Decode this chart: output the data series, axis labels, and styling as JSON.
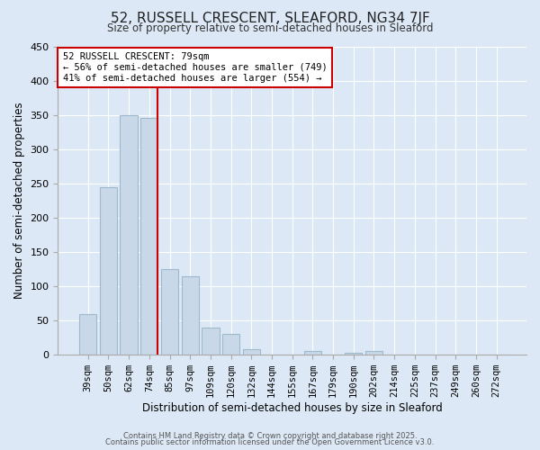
{
  "title": "52, RUSSELL CRESCENT, SLEAFORD, NG34 7JF",
  "subtitle": "Size of property relative to semi-detached houses in Sleaford",
  "xlabel": "Distribution of semi-detached houses by size in Sleaford",
  "ylabel": "Number of semi-detached properties",
  "categories": [
    "39sqm",
    "50sqm",
    "62sqm",
    "74sqm",
    "85sqm",
    "97sqm",
    "109sqm",
    "120sqm",
    "132sqm",
    "144sqm",
    "155sqm",
    "167sqm",
    "179sqm",
    "190sqm",
    "202sqm",
    "214sqm",
    "225sqm",
    "237sqm",
    "249sqm",
    "260sqm",
    "272sqm"
  ],
  "values": [
    60,
    245,
    350,
    345,
    125,
    115,
    40,
    30,
    8,
    0,
    0,
    5,
    0,
    3,
    5,
    0,
    0,
    0,
    0,
    0,
    0
  ],
  "bar_color": "#c8d8e8",
  "bar_edge_color": "#a0b8cc",
  "ylim": [
    0,
    450
  ],
  "yticks": [
    0,
    50,
    100,
    150,
    200,
    250,
    300,
    350,
    400,
    450
  ],
  "property_line_color": "#cc0000",
  "annotation_title": "52 RUSSELL CRESCENT: 79sqm",
  "annotation_line1": "← 56% of semi-detached houses are smaller (749)",
  "annotation_line2": "41% of semi-detached houses are larger (554) →",
  "annotation_box_color": "#cc0000",
  "footer1": "Contains HM Land Registry data © Crown copyright and database right 2025.",
  "footer2": "Contains public sector information licensed under the Open Government Licence v3.0.",
  "background_color": "#dce8f5",
  "plot_background": "#dce8f5"
}
